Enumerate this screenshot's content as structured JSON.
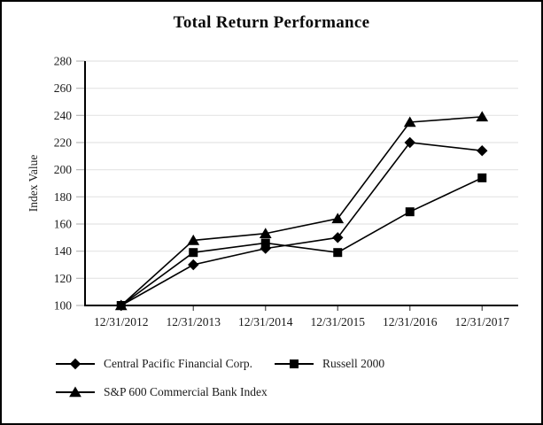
{
  "chart": {
    "title": "Total Return Performance",
    "y_axis_title": "Index Value"
  },
  "legend": {
    "items": [
      {
        "label": "Central Pacific Financial Corp.",
        "marker": "diamond"
      },
      {
        "label": "Russell 2000",
        "marker": "square"
      },
      {
        "label": "S&P 600 Commercial Bank Index",
        "marker": "triangle"
      }
    ]
  },
  "chart_data": {
    "type": "line",
    "title": "Total Return Performance",
    "xlabel": "",
    "ylabel": "Index Value",
    "categories": [
      "12/31/2012",
      "12/31/2013",
      "12/31/2014",
      "12/31/2015",
      "12/31/2016",
      "12/31/2017"
    ],
    "series": [
      {
        "name": "Central Pacific Financial Corp.",
        "marker": "diamond",
        "values": [
          100,
          130,
          142,
          150,
          220,
          214
        ]
      },
      {
        "name": "Russell 2000",
        "marker": "square",
        "values": [
          100,
          139,
          146,
          139,
          169,
          194
        ]
      },
      {
        "name": "S&P 600 Commercial Bank Index",
        "marker": "triangle",
        "values": [
          100,
          148,
          153,
          164,
          235,
          239
        ]
      }
    ],
    "ylim": [
      100,
      280
    ],
    "y_ticks": [
      100,
      120,
      140,
      160,
      180,
      200,
      220,
      240,
      260,
      280
    ],
    "grid": true,
    "legend_position": "bottom-left",
    "colors": {
      "series": "#000000",
      "gridline": "#e4e4e4",
      "axis": "#000000",
      "tick_minor": "#b8b8b8",
      "text": "#1a1a1a"
    }
  }
}
